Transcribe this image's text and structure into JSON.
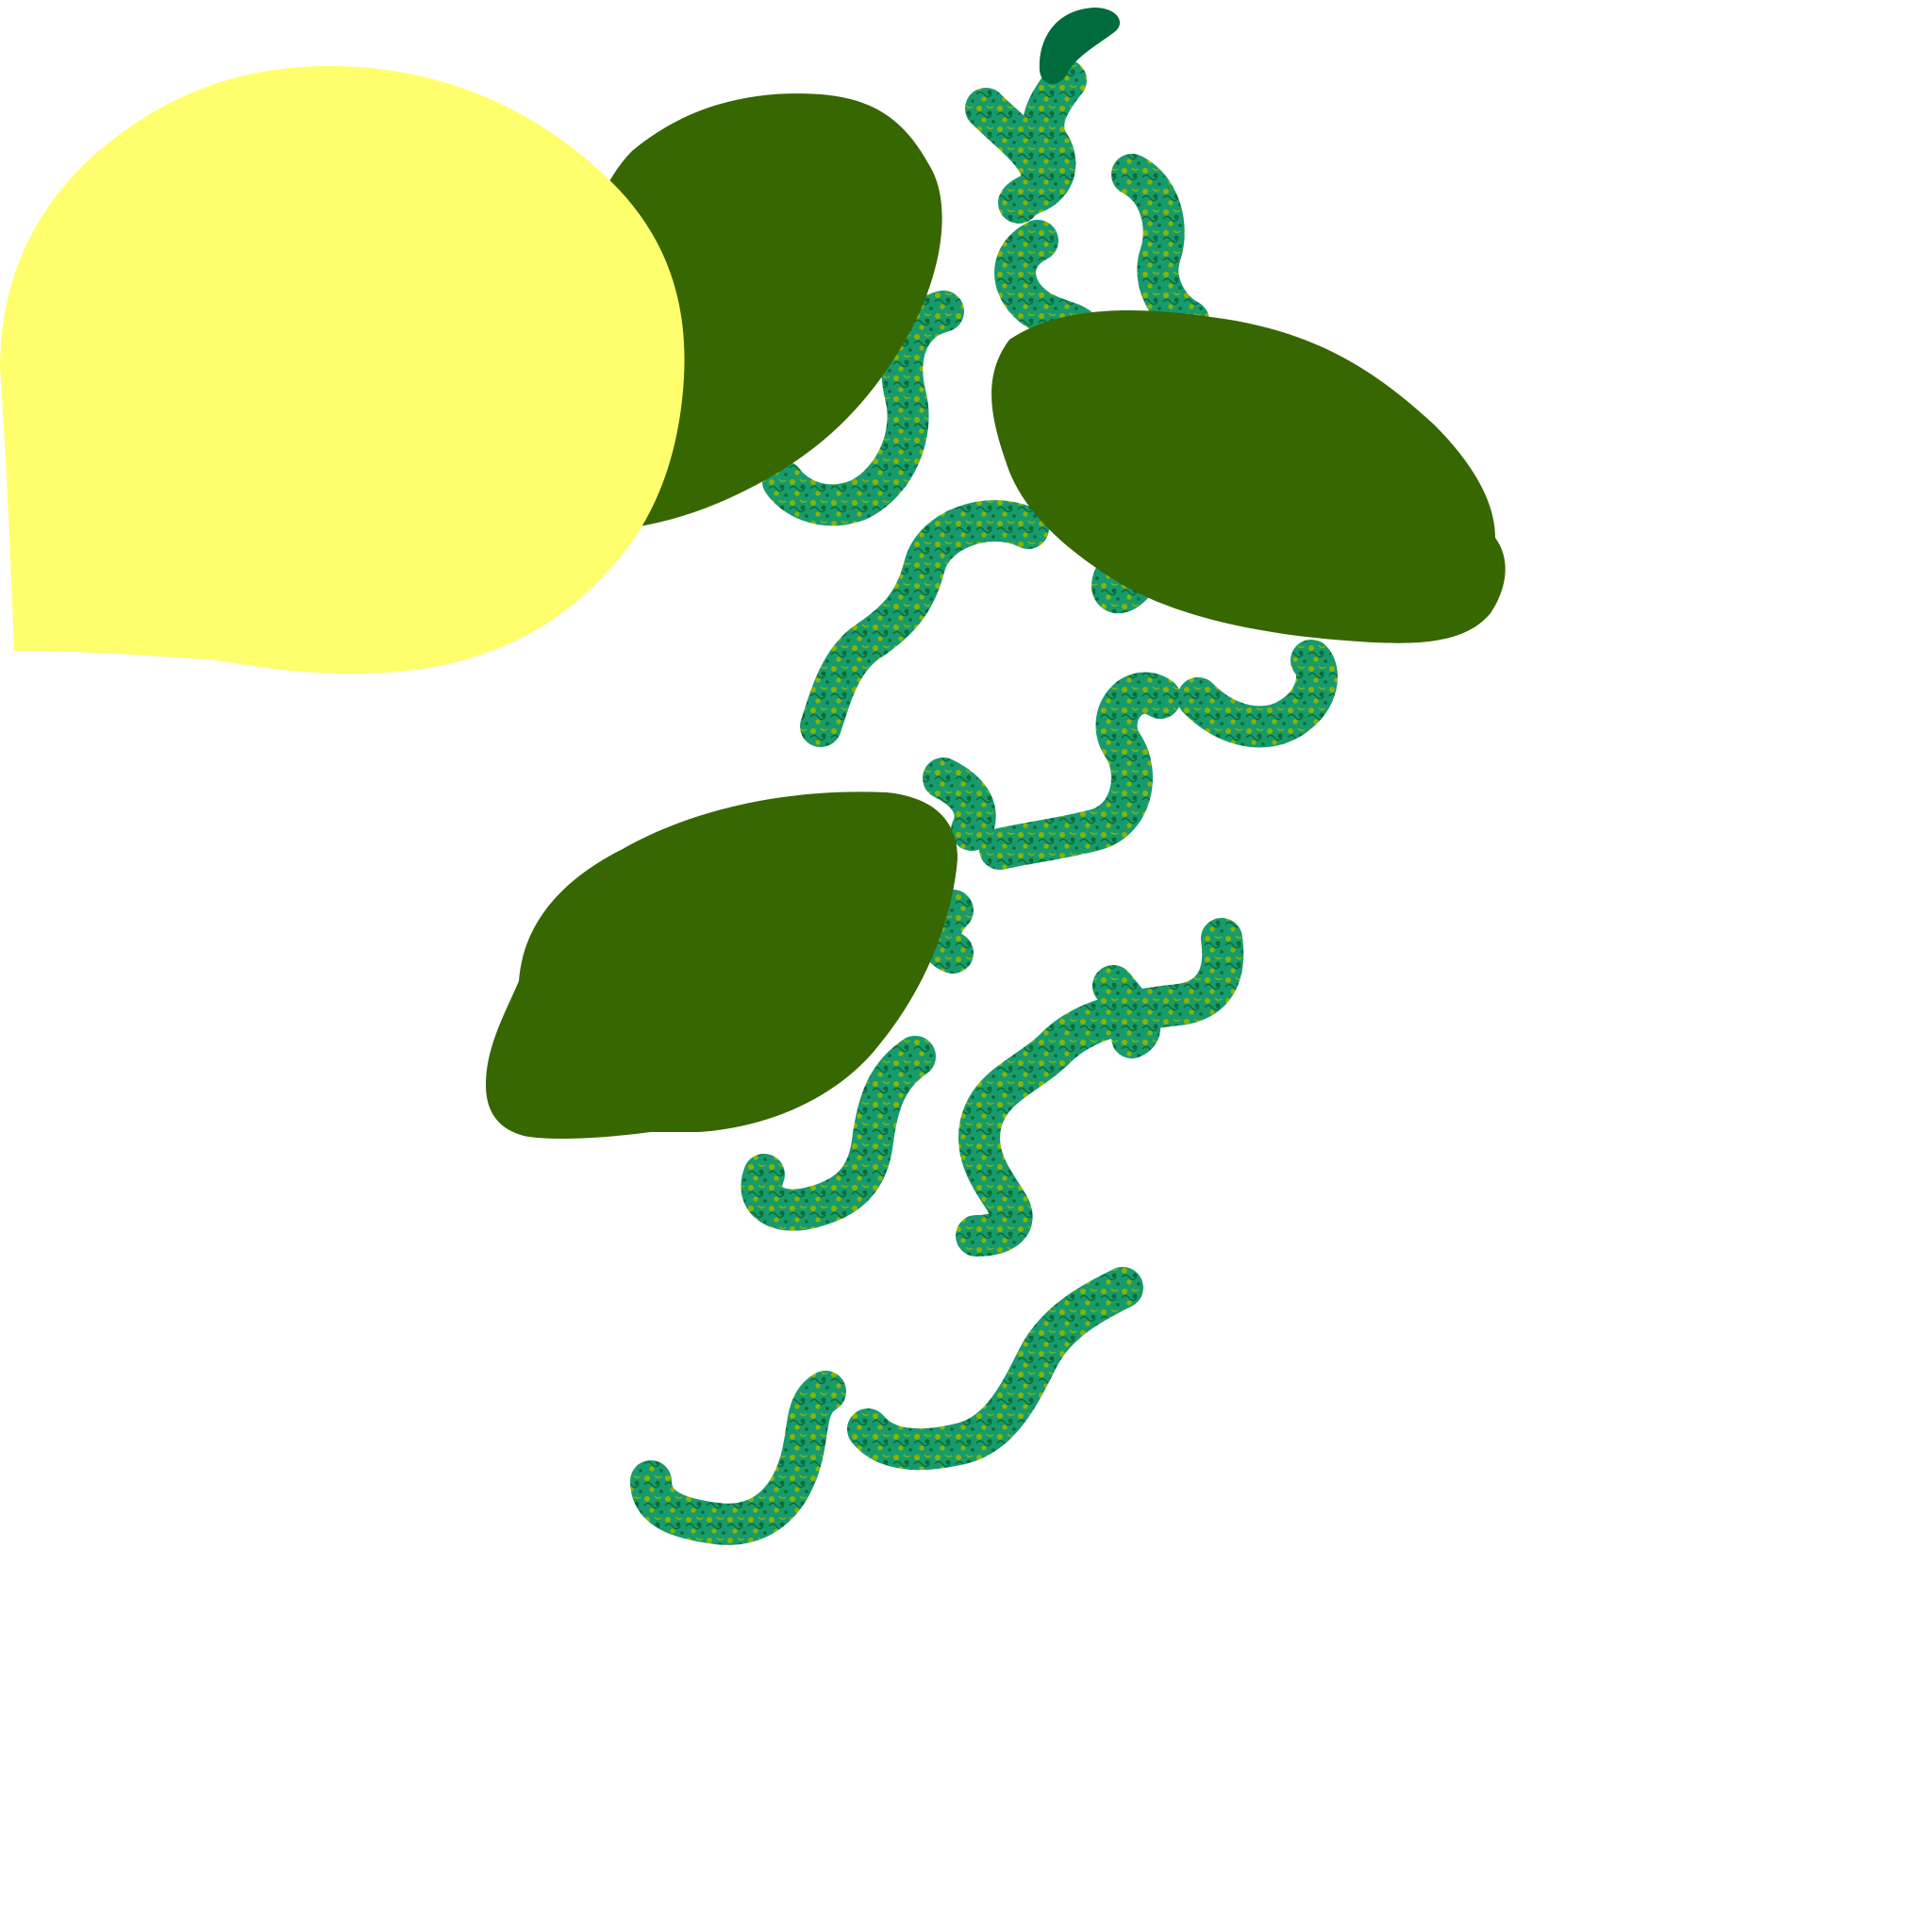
{
  "illustration": {
    "colors": {
      "background": "#ffffff",
      "lemon": "#ffff6e",
      "lime": "#376700",
      "zest_base": "#179b6c",
      "zest_speckle": "#88b400",
      "zest_dark": "#0a6b36",
      "zest_tip": "#006b3c"
    },
    "objects": {
      "lemon_count": 1,
      "lime_count": 3,
      "zest_strip_count": 17
    }
  }
}
